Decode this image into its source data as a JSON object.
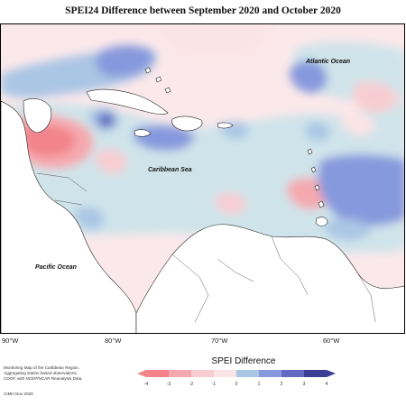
{
  "title": "SPEI24 Difference between September 2020 and October 2020",
  "map": {
    "labels": {
      "atlantic": "Atlantic Ocean",
      "caribbean": "Caribbean Sea",
      "pacific": "Pacific Ocean"
    },
    "longitude_labels": [
      "90°W",
      "80°W",
      "70°W",
      "60°W"
    ]
  },
  "legend": {
    "title": "SPEI Difference",
    "ticks": [
      "-4",
      "-3",
      "-2",
      "-1",
      "0",
      "1",
      "2",
      "3",
      "4"
    ],
    "colors": [
      "#f2838b",
      "#f5a9ae",
      "#f8cdd1",
      "#fbe4e6",
      "#cfe4ea",
      "#aac6e5",
      "#8799dd",
      "#6269c1",
      "#3a3f95"
    ]
  },
  "credits": {
    "lines": [
      "Monitoring Map of the Caribbean Region.",
      "Aggregating station based observations,",
      "CDOF, with NCEP/NCAR Reanalysis Data."
    ],
    "author": "CIMH Nov 2020"
  }
}
